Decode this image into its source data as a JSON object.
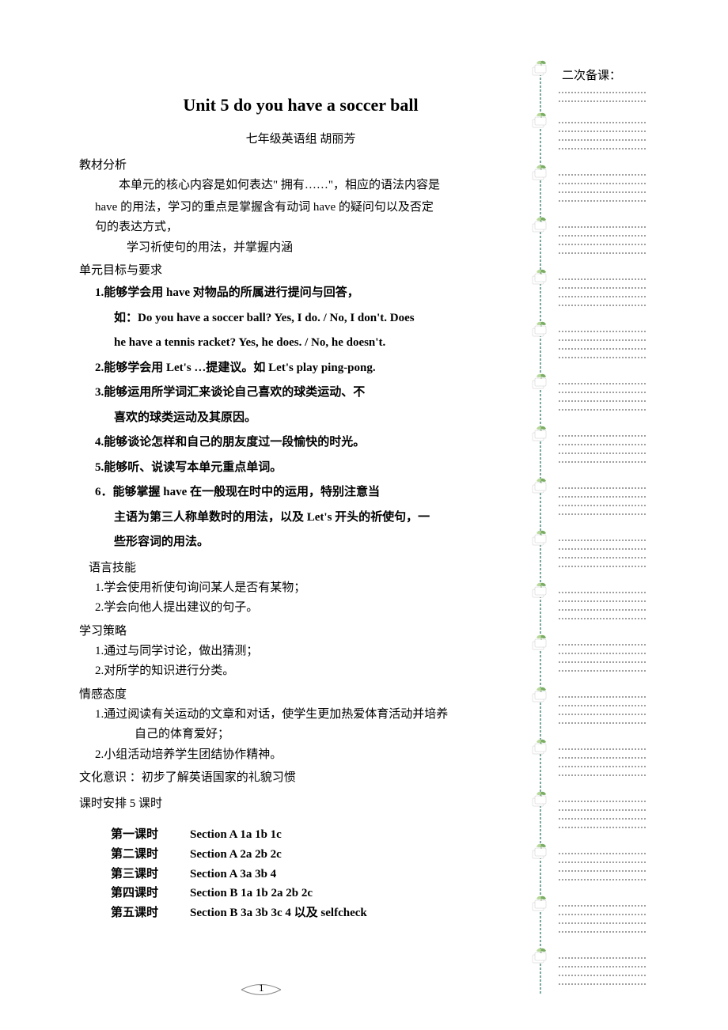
{
  "title": "Unit 5 do you have a soccer ball",
  "subtitle": "七年级英语组     胡丽芳",
  "analysis": {
    "heading": "教材分析",
    "p1": "本单元的核心内容是如何表达\" 拥有……\"，相应的语法内容是",
    "p2": "have 的用法，学习的重点是掌握含有动词 have 的疑问句以及否定",
    "p3": "句的表达方式，",
    "p4": "学习祈使句的用法，并掌握内涵"
  },
  "objectives": {
    "heading": "单元目标与要求",
    "items": [
      "1.能够学会用 have 对物品的所属进行提问与回答，",
      "如：Do you have a soccer ball? Yes, I do. / No, I don't. Does",
      "he have a tennis racket? Yes, he does. / No, he doesn't.",
      "2.能够学会用 Let's  …提建议。如 Let's play ping-pong.",
      "3.能够运用所学词汇来谈论自己喜欢的球类运动、不",
      "喜欢的球类运动及其原因。",
      "4.能够谈论怎样和自己的朋友度过一段愉快的时光。",
      "5.能够听、说读写本单元重点单词。",
      "6．能够掌握 have 在一般现在时中的运用，特别注意当",
      "主语为第三人称单数时的用法，以及 Let's 开头的祈使句，一",
      "些形容词的用法。"
    ]
  },
  "skills": {
    "heading": "语言技能",
    "items": [
      "1.学会使用祈使句询问某人是否有某物；",
      "2.学会向他人提出建议的句子。"
    ]
  },
  "strategies": {
    "heading": "学习策略",
    "items": [
      "1.通过与同学讨论，做出猜测；",
      "2.对所学的知识进行分类。"
    ]
  },
  "attitudes": {
    "heading": "情感态度",
    "items": [
      "1.通过阅读有关运动的文章和对话，使学生更加热爱体育活动并培养",
      "自己的体育爱好；",
      "2.小组活动培养学生团结协作精神。"
    ]
  },
  "culture": "文化意识 ：初步了解英语国家的礼貌习惯",
  "schedule": {
    "heading": "课时安排 5 课时",
    "rows": [
      {
        "label": "第一课时",
        "content": "Section A 1a   1b   1c"
      },
      {
        "label": "第二课时",
        "content": "Section A 2a   2b   2c"
      },
      {
        "label": "第三课时",
        "content": "Section A 3a   3b   4"
      },
      {
        "label": "第四课时",
        "content": "Section B 1a   1b   2a   2b   2c"
      },
      {
        "label": "第五课时",
        "content": "Section B 3a   3b   3c   4 以及  selfcheck"
      }
    ]
  },
  "sidebar": {
    "title": "二次备课：",
    "leaf_count": 18,
    "leaf_spacing": 66,
    "leaf_start": 14,
    "line_spacing": 11,
    "colors": {
      "leaf_light": "#b8d89a",
      "leaf_dark": "#7aad63",
      "leaf_page": "#ffffff",
      "leaf_page_border": "#c8c8c8",
      "dotted": "#a0a0a0"
    }
  },
  "page_number": "1"
}
